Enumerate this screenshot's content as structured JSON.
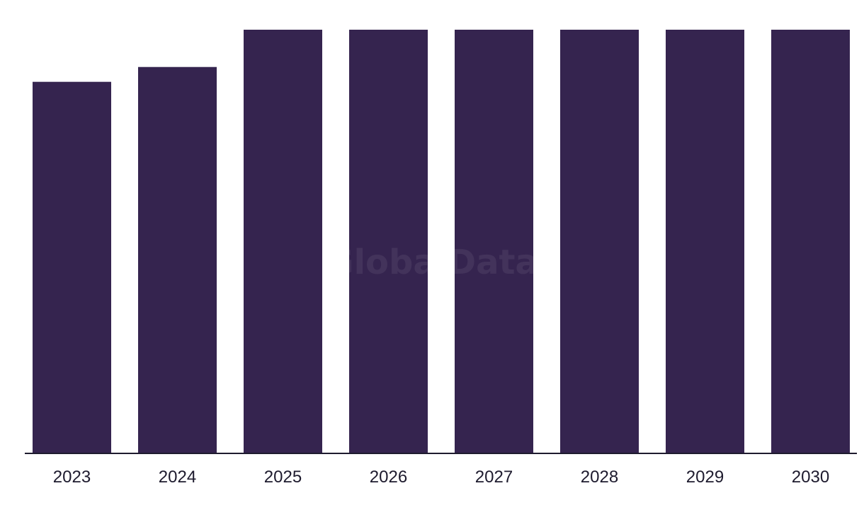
{
  "chart_data": {
    "type": "bar",
    "categories": [
      "2023",
      "2024",
      "2025",
      "2026",
      "2027",
      "2028",
      "2029",
      "2030"
    ],
    "values": [
      87.7,
      91.2,
      100,
      100,
      100,
      100,
      100,
      100
    ],
    "ylim": [
      0,
      100
    ],
    "grid": false,
    "legend": "none",
    "bar_color": "#35244f",
    "axis_color": "#1e1b2e"
  },
  "watermark": {
    "text": "GlobalData"
  }
}
